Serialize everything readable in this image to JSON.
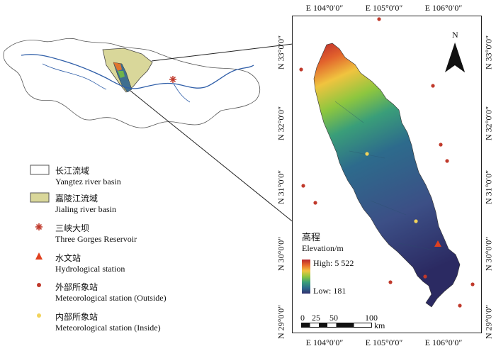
{
  "north_label": "N",
  "longitude_ticks": [
    "E 104°0′0″",
    "E 105°0′0″",
    "E 106°0′0″"
  ],
  "latitude_ticks": [
    "N 33°0′0″",
    "N 32°0′0″",
    "N 31°0′0″",
    "N 30°0′0″",
    "N 29°0′0″"
  ],
  "elevation": {
    "title_cn": "高程",
    "title_en": "Elevation/m",
    "high": "High: 5 522",
    "low": "Low: 181"
  },
  "scale": {
    "labels": [
      "0",
      "25",
      "50",
      "100"
    ],
    "unit": "km"
  },
  "legend": [
    {
      "cn": "长江流域",
      "en": "Yangtez river basin",
      "symbol": "white-rect-icon"
    },
    {
      "cn": "嘉陵江流域",
      "en": "Jialing river basin",
      "symbol": "olive-rect-icon",
      "color": "#d9d79a"
    },
    {
      "cn": "三峡大坝",
      "en": "Three Gorges Reservoir",
      "symbol": "asterisk-icon",
      "color": "#c0392b"
    },
    {
      "cn": "水文站",
      "en": "Hydrological station",
      "symbol": "triangle-icon",
      "color": "#e0401f"
    },
    {
      "cn": "外部所象站",
      "en": "Meteorological station (Outside)",
      "symbol": "red-dot-icon",
      "color": "#c0392b"
    },
    {
      "cn": "内部所象站",
      "en": "Meteorological station (Inside)",
      "symbol": "yellow-dot-icon",
      "color": "#f2d35b"
    }
  ]
}
